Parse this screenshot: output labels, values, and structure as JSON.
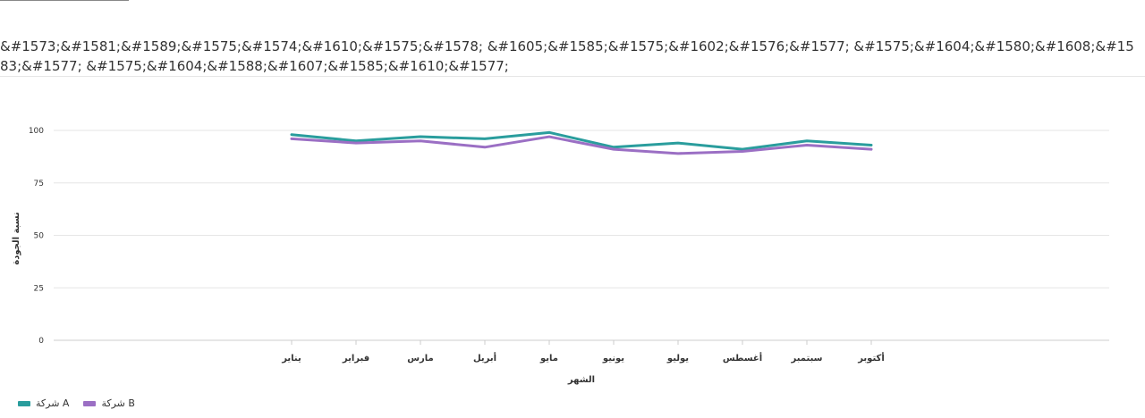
{
  "chart_data": {
    "type": "line",
    "title": "&#1573;&#1581;&#1589;&#1575;&#1574;&#1610;&#1575;&#1578; &#1605;&#1585;&#1575;&#1602;&#1576;&#1577; &#1575;&#1604;&#1580;&#1608;&#1583;&#1577; &#1575;&#1604;&#1588;&#1607;&#1585;&#1610;&#1577;",
    "xlabel": "الشهر",
    "ylabel": "نسبة الجودة",
    "categories": [
      "يناير",
      "فبراير",
      "مارس",
      "أبريل",
      "مايو",
      "يونيو",
      "يوليو",
      "أغسطس",
      "سبتمبر",
      "أكتوبر"
    ],
    "ylim": [
      0,
      100
    ],
    "yticks": [
      0,
      25,
      50,
      75,
      100
    ],
    "grid": true,
    "legend_position": "bottom-left",
    "series": [
      {
        "name": "شركة A",
        "color": "#2a9d9d",
        "values": [
          98,
          95,
          97,
          96,
          99,
          92,
          94,
          91,
          95,
          93
        ]
      },
      {
        "name": "شركة B",
        "color": "#9b6fc4",
        "values": [
          96,
          94,
          95,
          92,
          97,
          91,
          89,
          90,
          93,
          91
        ]
      }
    ]
  }
}
